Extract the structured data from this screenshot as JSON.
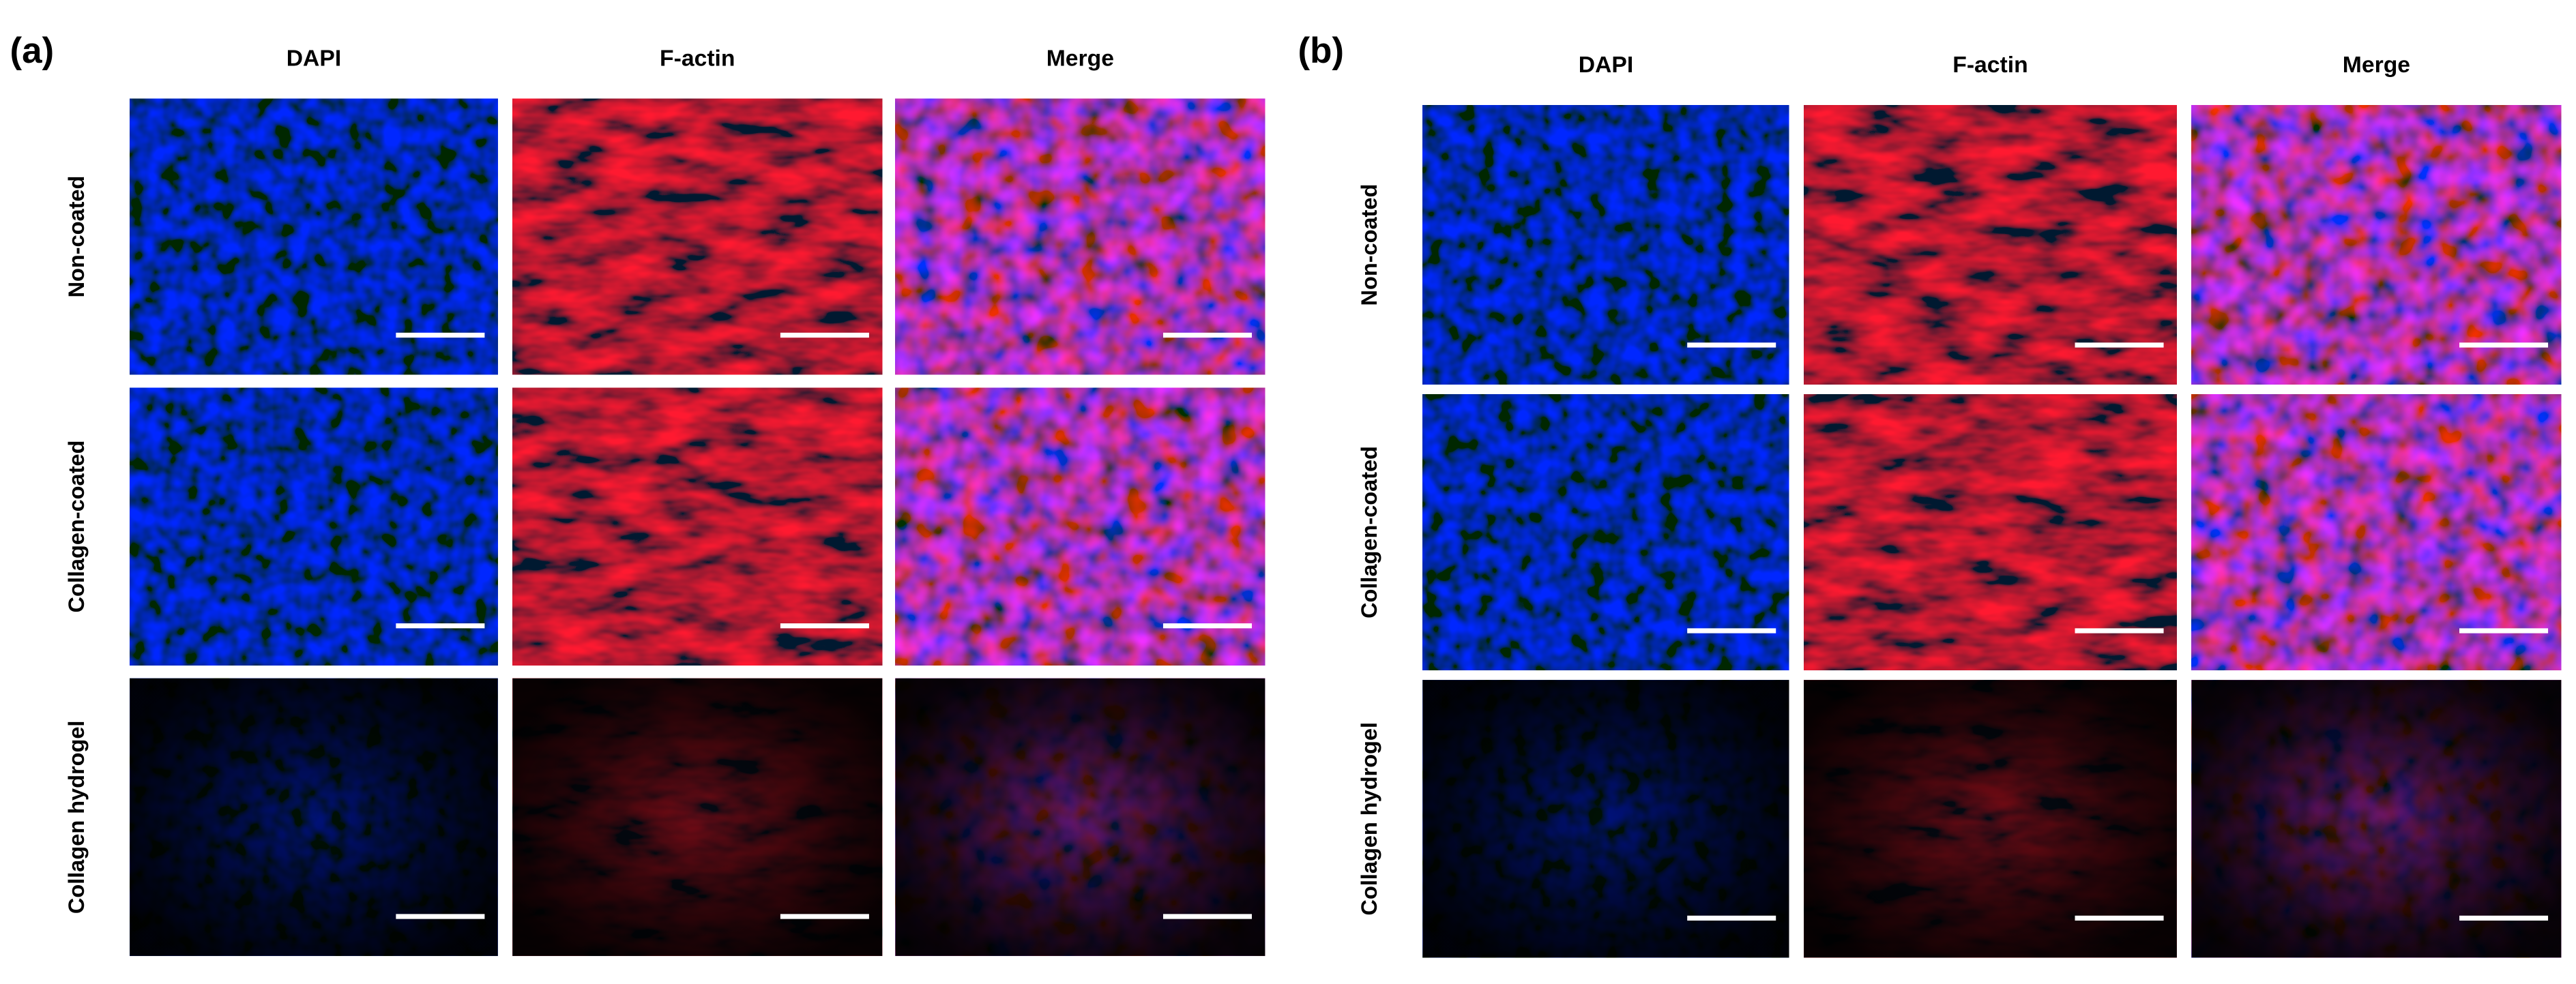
{
  "panels": [
    {
      "label": "(a)",
      "columns": [
        "DAPI",
        "F-actin",
        "Merge"
      ],
      "rows": [
        "Non-coated",
        "Collagen-coated",
        "Collagen hydrogel"
      ]
    },
    {
      "label": "(b)",
      "columns": [
        "DAPI",
        "F-actin",
        "Merge"
      ],
      "rows": [
        "Non-coated",
        "Collagen-coated",
        "Collagen hydrogel"
      ]
    }
  ]
}
